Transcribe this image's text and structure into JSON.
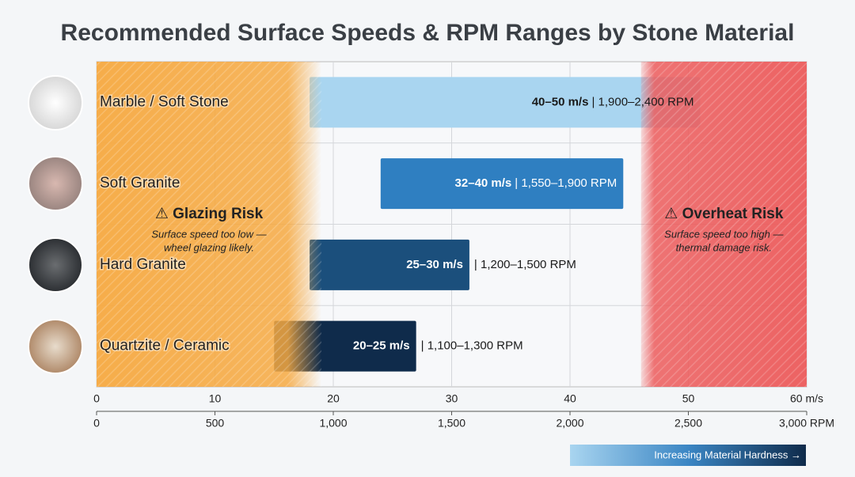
{
  "chart_data": {
    "type": "bar",
    "orientation": "horizontal",
    "title": "Recommended Surface Speeds & RPM Ranges by Stone Material",
    "categories": [
      "Marble / Soft Stone",
      "Soft Granite",
      "Hard Granite",
      "Quartzite / Ceramic"
    ],
    "starts": [
      18,
      24,
      18,
      15
    ],
    "ends": [
      51,
      44.5,
      31.5,
      27
    ],
    "colors": [
      "#a9d5f0",
      "#2f7fc1",
      "#1b4f7c",
      "#0f2b4b"
    ],
    "value_labels": [
      "40–50 m/s",
      "32–40 m/s",
      "25–30 m/s",
      "20–25 m/s"
    ],
    "rpm_labels": [
      "| 1,900–2,400 RPM",
      "| 1,550–1,900 RPM",
      "| 1,200–1,500 RPM",
      "| 1,100–1,300 RPM"
    ],
    "xlim": [
      0,
      60
    ],
    "xticks": [
      0,
      10,
      20,
      30,
      40,
      50,
      {
        "value": 60,
        "label": "60 m/s"
      }
    ],
    "x2lim": [
      0,
      3000
    ],
    "x2ticks": [
      0,
      500,
      {
        "value": 1000,
        "label": "1,000"
      },
      {
        "value": 1500,
        "label": "1,500"
      },
      {
        "value": 2000,
        "label": "2,000"
      },
      {
        "value": 2500,
        "label": "2,500"
      },
      {
        "value": 3000,
        "label": "3,000 RPM"
      }
    ],
    "grid": true,
    "zones": [
      {
        "label": "⚠ Glazing Risk",
        "note": [
          "Surface speed too low —",
          "wheel glazing likely."
        ],
        "range": [
          0,
          19
        ],
        "color": "#f6a941"
      },
      {
        "label": "⚠ Overheat Risk",
        "note": [
          "Surface speed too high —",
          "thermal damage risk."
        ],
        "range": [
          46,
          60
        ],
        "color": "#ec5b5b"
      }
    ],
    "hardness_label": "Increasing Material Hardness →"
  }
}
